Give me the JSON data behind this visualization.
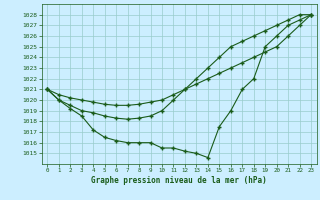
{
  "title": "Graphe pression niveau de la mer (hPa)",
  "bg_color": "#cceeff",
  "grid_color": "#99cccc",
  "line_color": "#1a5c1a",
  "xlim": [
    -0.5,
    23.5
  ],
  "ylim": [
    1014.0,
    1029.0
  ],
  "xticks": [
    0,
    1,
    2,
    3,
    4,
    5,
    6,
    7,
    8,
    9,
    10,
    11,
    12,
    13,
    14,
    15,
    16,
    17,
    18,
    19,
    20,
    21,
    22,
    23
  ],
  "yticks": [
    1015,
    1016,
    1017,
    1018,
    1019,
    1020,
    1021,
    1022,
    1023,
    1024,
    1025,
    1026,
    1027,
    1028
  ],
  "line1_x": [
    0,
    1,
    2,
    3,
    4,
    5,
    6,
    7,
    8,
    9,
    10,
    11,
    12,
    13,
    14,
    15,
    16,
    17,
    18,
    19,
    20,
    21,
    22,
    23
  ],
  "line1_y": [
    1021,
    1020.5,
    1020.2,
    1020.0,
    1019.8,
    1019.6,
    1019.5,
    1019.5,
    1019.6,
    1019.8,
    1020,
    1020.5,
    1021,
    1021.5,
    1022,
    1022.5,
    1023,
    1023.5,
    1024,
    1024.5,
    1025,
    1026,
    1027,
    1028
  ],
  "line2_x": [
    0,
    1,
    2,
    3,
    4,
    5,
    6,
    7,
    8,
    9,
    10,
    11,
    12,
    13,
    14,
    15,
    16,
    17,
    18,
    19,
    20,
    21,
    22,
    23
  ],
  "line2_y": [
    1021,
    1020,
    1019.2,
    1018.5,
    1017.2,
    1016.5,
    1016.2,
    1016.0,
    1016.0,
    1016.0,
    1015.5,
    1015.5,
    1015.2,
    1015.0,
    1014.6,
    1017.5,
    1019.0,
    1021.0,
    1022.0,
    1025.0,
    1026.0,
    1027.0,
    1027.5,
    1028.0
  ],
  "line3_x": [
    0,
    1,
    2,
    3,
    4,
    5,
    6,
    7,
    8,
    9,
    10,
    11,
    12,
    13,
    14,
    15,
    16,
    17,
    18,
    19,
    20,
    21,
    22,
    23
  ],
  "line3_y": [
    1021,
    1020.0,
    1019.5,
    1019.0,
    1018.8,
    1018.5,
    1018.3,
    1018.2,
    1018.3,
    1018.5,
    1019.0,
    1020.0,
    1021.0,
    1022.0,
    1023.0,
    1024.0,
    1025.0,
    1025.5,
    1026.0,
    1026.5,
    1027.0,
    1027.5,
    1028.0,
    1028.0
  ]
}
